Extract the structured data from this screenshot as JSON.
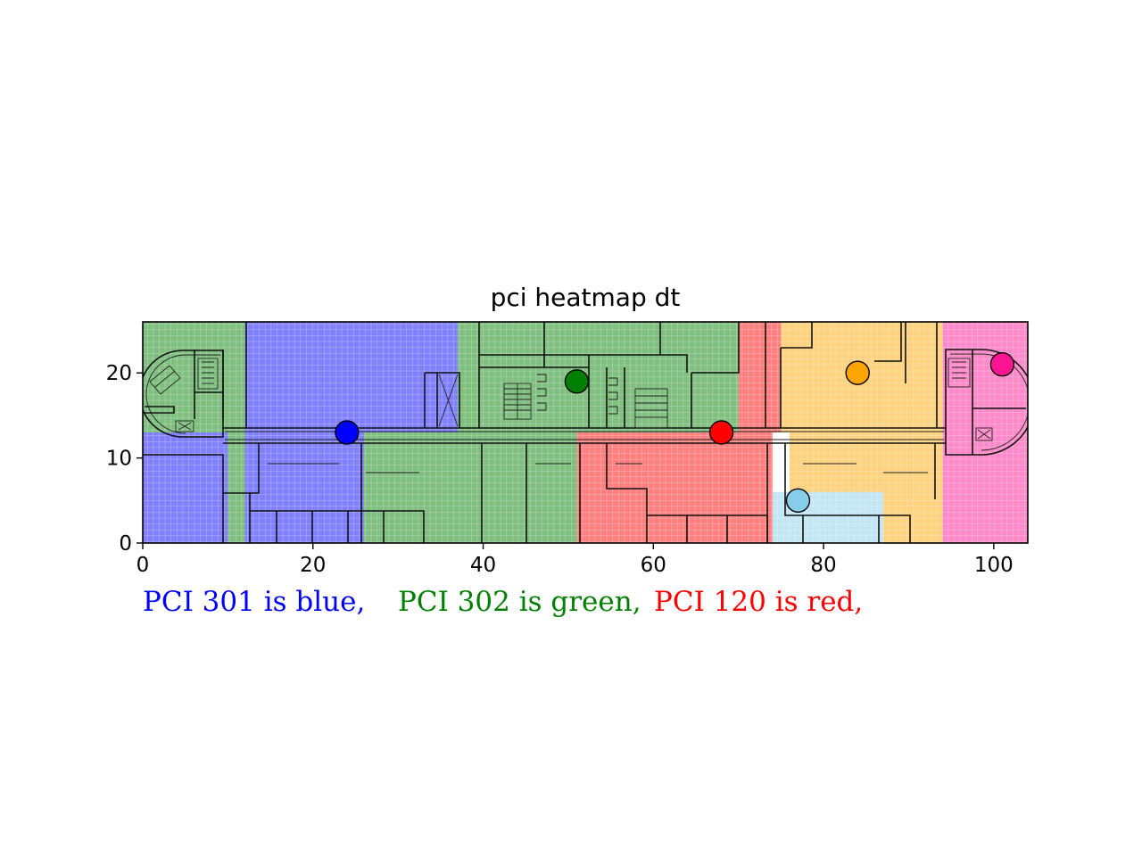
{
  "chart_data": {
    "type": "heatmap",
    "title": "pci heatmap dt",
    "xlabel": "",
    "ylabel": "",
    "xlim": [
      0,
      104
    ],
    "ylim": [
      0,
      26
    ],
    "xticks": [
      0,
      20,
      40,
      60,
      80,
      100
    ],
    "yticks": [
      0,
      10,
      20
    ],
    "grid": false,
    "background": "floor plan",
    "regions": [
      {
        "pci": 301,
        "color": "#0000ff",
        "x": [
          0,
          10
        ],
        "y": [
          0,
          13
        ]
      },
      {
        "pci": 302,
        "color": "#008000",
        "x": [
          0,
          12
        ],
        "y": [
          13,
          26
        ]
      },
      {
        "pci": 302,
        "color": "#008000",
        "x": [
          10,
          12
        ],
        "y": [
          0,
          13
        ]
      },
      {
        "pci": 301,
        "color": "#0000ff",
        "x": [
          12,
          37
        ],
        "y": [
          13,
          26
        ]
      },
      {
        "pci": 301,
        "color": "#0000ff",
        "x": [
          12,
          26
        ],
        "y": [
          0,
          13
        ]
      },
      {
        "pci": 302,
        "color": "#008000",
        "x": [
          26,
          51
        ],
        "y": [
          0,
          13
        ]
      },
      {
        "pci": 302,
        "color": "#008000",
        "x": [
          37,
          70
        ],
        "y": [
          13,
          26
        ]
      },
      {
        "pci": 120,
        "color": "#ff0000",
        "x": [
          51,
          74
        ],
        "y": [
          0,
          13
        ]
      },
      {
        "pci": 120,
        "color": "#ff0000",
        "x": [
          70,
          75
        ],
        "y": [
          13,
          26
        ]
      },
      {
        "pci": null,
        "color": "#87ceeb",
        "x": [
          74,
          87
        ],
        "y": [
          0,
          6
        ]
      },
      {
        "pci": null,
        "color": "#ffa500",
        "x": [
          75,
          94
        ],
        "y": [
          13,
          26
        ]
      },
      {
        "pci": null,
        "color": "#ffa500",
        "x": [
          76,
          94
        ],
        "y": [
          6,
          13
        ]
      },
      {
        "pci": null,
        "color": "#ffa500",
        "x": [
          87,
          94
        ],
        "y": [
          0,
          6
        ]
      },
      {
        "pci": null,
        "color": "#ff1493",
        "x": [
          94,
          104
        ],
        "y": [
          0,
          26
        ]
      }
    ],
    "points": [
      {
        "x": 24,
        "y": 13,
        "color": "#0000ff"
      },
      {
        "x": 51,
        "y": 19,
        "color": "#008000"
      },
      {
        "x": 68,
        "y": 13,
        "color": "#ff0000"
      },
      {
        "x": 77,
        "y": 5,
        "color": "#87ceeb"
      },
      {
        "x": 84,
        "y": 20,
        "color": "#ffa500"
      },
      {
        "x": 101,
        "y": 21,
        "color": "#ff1493"
      }
    ],
    "legend_notes": [
      {
        "text": "PCI 301 is blue,",
        "color": "#0000ff"
      },
      {
        "text": "PCI 302 is green,",
        "color": "#008000"
      },
      {
        "text": "PCI 120 is red,",
        "color": "#ff0000"
      }
    ]
  }
}
